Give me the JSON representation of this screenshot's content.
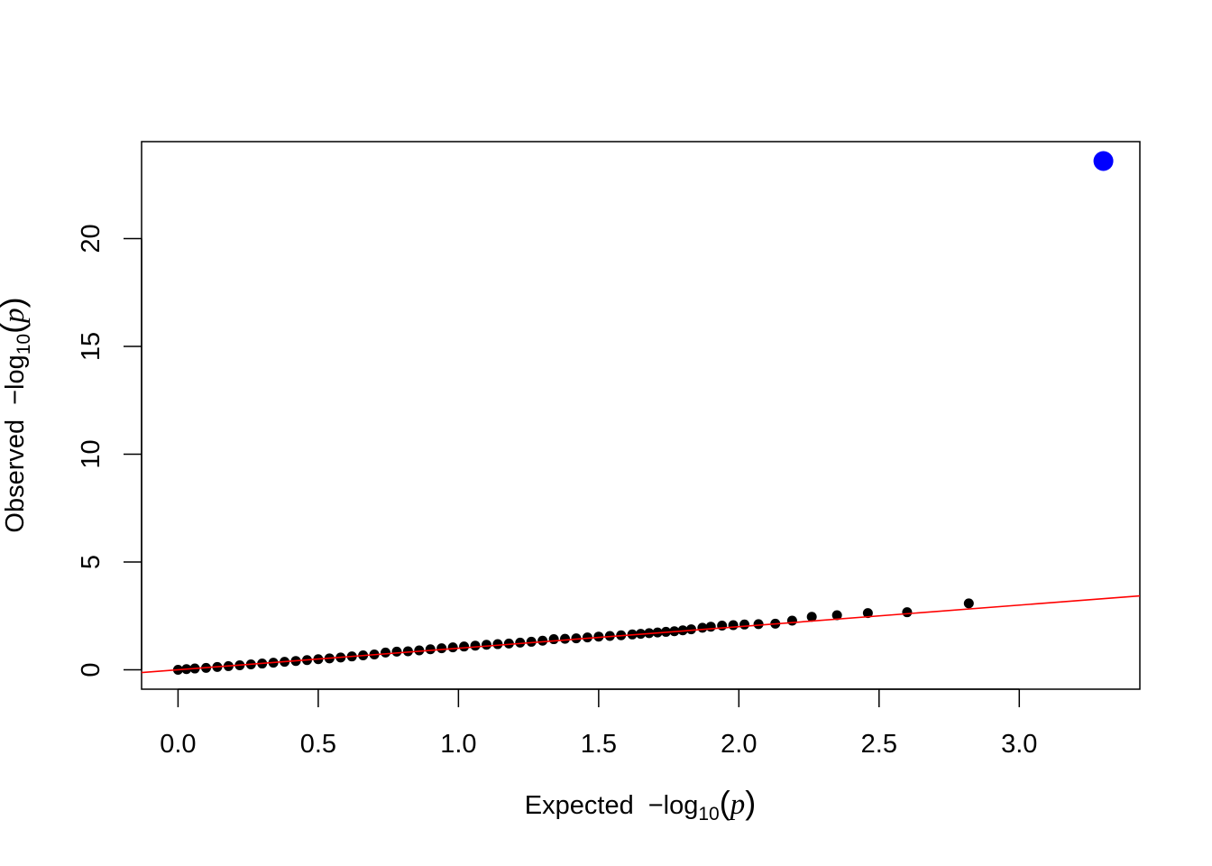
{
  "chart_data": {
    "type": "scatter",
    "xlabel": {
      "prefix": "Expected",
      "minus": "−",
      "log": "log",
      "sub": "10",
      "open": "(",
      "var": "p",
      "close": ")"
    },
    "ylabel": {
      "prefix": "Observed",
      "minus": "−",
      "log": "log",
      "sub": "10",
      "open": "(",
      "var": "p",
      "close": ")"
    },
    "xlim": [
      -0.13,
      3.43
    ],
    "ylim": [
      -0.9,
      24.5
    ],
    "x_ticks": [
      0.0,
      0.5,
      1.0,
      1.5,
      2.0,
      2.5,
      3.0
    ],
    "x_tick_labels": [
      "0.0",
      "0.5",
      "1.0",
      "1.5",
      "2.0",
      "2.5",
      "3.0"
    ],
    "y_ticks": [
      0,
      5,
      10,
      15,
      20
    ],
    "y_tick_labels": [
      "0",
      "5",
      "10",
      "15",
      "20"
    ],
    "grid": false,
    "reference_line": {
      "intercept": 0,
      "slope": 1,
      "color": "#ff0000"
    },
    "series": [
      {
        "color": "#000000",
        "points": [
          [
            0.0,
            0.0
          ],
          [
            0.03,
            0.03
          ],
          [
            0.06,
            0.06
          ],
          [
            0.1,
            0.09
          ],
          [
            0.14,
            0.13
          ],
          [
            0.18,
            0.17
          ],
          [
            0.22,
            0.21
          ],
          [
            0.26,
            0.25
          ],
          [
            0.3,
            0.29
          ],
          [
            0.34,
            0.33
          ],
          [
            0.38,
            0.37
          ],
          [
            0.42,
            0.41
          ],
          [
            0.46,
            0.45
          ],
          [
            0.5,
            0.49
          ],
          [
            0.54,
            0.53
          ],
          [
            0.58,
            0.57
          ],
          [
            0.62,
            0.62
          ],
          [
            0.66,
            0.67
          ],
          [
            0.7,
            0.71
          ],
          [
            0.74,
            0.8
          ],
          [
            0.78,
            0.84
          ],
          [
            0.82,
            0.86
          ],
          [
            0.86,
            0.9
          ],
          [
            0.9,
            0.95
          ],
          [
            0.94,
            1.0
          ],
          [
            0.98,
            1.04
          ],
          [
            1.02,
            1.08
          ],
          [
            1.06,
            1.12
          ],
          [
            1.1,
            1.16
          ],
          [
            1.14,
            1.19
          ],
          [
            1.18,
            1.22
          ],
          [
            1.22,
            1.26
          ],
          [
            1.26,
            1.3
          ],
          [
            1.3,
            1.35
          ],
          [
            1.34,
            1.42
          ],
          [
            1.38,
            1.44
          ],
          [
            1.42,
            1.46
          ],
          [
            1.46,
            1.5
          ],
          [
            1.5,
            1.54
          ],
          [
            1.54,
            1.57
          ],
          [
            1.58,
            1.6
          ],
          [
            1.62,
            1.64
          ],
          [
            1.65,
            1.67
          ],
          [
            1.68,
            1.7
          ],
          [
            1.71,
            1.73
          ],
          [
            1.74,
            1.76
          ],
          [
            1.77,
            1.79
          ],
          [
            1.8,
            1.83
          ],
          [
            1.83,
            1.88
          ],
          [
            1.87,
            1.95
          ],
          [
            1.9,
            2.0
          ],
          [
            1.94,
            2.05
          ],
          [
            1.98,
            2.07
          ],
          [
            2.02,
            2.1
          ],
          [
            2.07,
            2.12
          ],
          [
            2.13,
            2.14
          ],
          [
            2.19,
            2.28
          ],
          [
            2.26,
            2.46
          ],
          [
            2.35,
            2.53
          ],
          [
            2.46,
            2.63
          ],
          [
            2.6,
            2.67
          ],
          [
            2.82,
            3.08
          ]
        ]
      },
      {
        "color": "#0000ff",
        "points": [
          [
            3.3,
            23.6
          ]
        ]
      }
    ]
  }
}
